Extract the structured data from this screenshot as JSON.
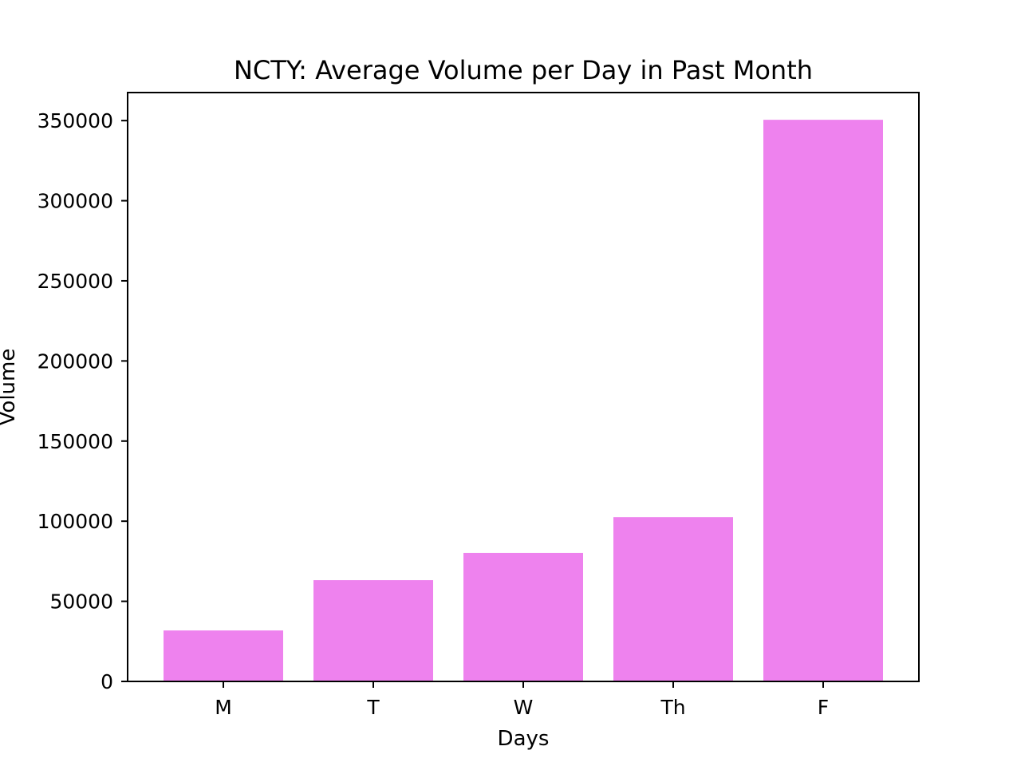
{
  "chart_data": {
    "type": "bar",
    "title": "NCTY: Average Volume per Day in Past Month",
    "xlabel": "Days",
    "ylabel": "Volume",
    "categories": [
      "M",
      "T",
      "W",
      "Th",
      "F"
    ],
    "values": [
      31800,
      63200,
      80200,
      102500,
      350500
    ],
    "ylim": [
      0,
      367500
    ],
    "yticks": [
      0,
      50000,
      100000,
      150000,
      200000,
      250000,
      300000,
      350000
    ],
    "ytick_labels": [
      "0",
      "50000",
      "100000",
      "150000",
      "200000",
      "250000",
      "300000",
      "350000"
    ],
    "bar_color": "#ee82ee",
    "grid": false,
    "legend": "none"
  }
}
